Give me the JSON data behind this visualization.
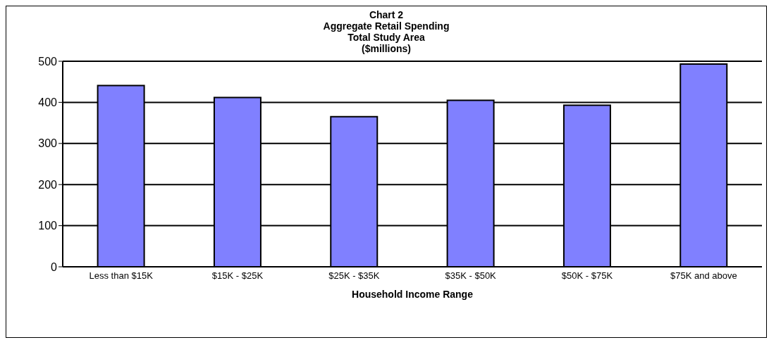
{
  "chart_data": {
    "type": "bar",
    "title": "Chart 2\nAggregate Retail Spending\nTotal Study Area\n($millions)",
    "xlabel": "Household Income Range",
    "categories": [
      "Less than $15K",
      "$15K - $25K",
      "$25K - $35K",
      "$35K - $50K",
      "$50K - $75K",
      "$75K and above"
    ],
    "values": [
      441,
      412,
      365,
      405,
      393,
      493
    ],
    "color": "#8080ff",
    "ylim": [
      0,
      500
    ],
    "yticks": [
      0,
      100,
      200,
      300,
      400,
      500
    ],
    "grid": "y"
  }
}
